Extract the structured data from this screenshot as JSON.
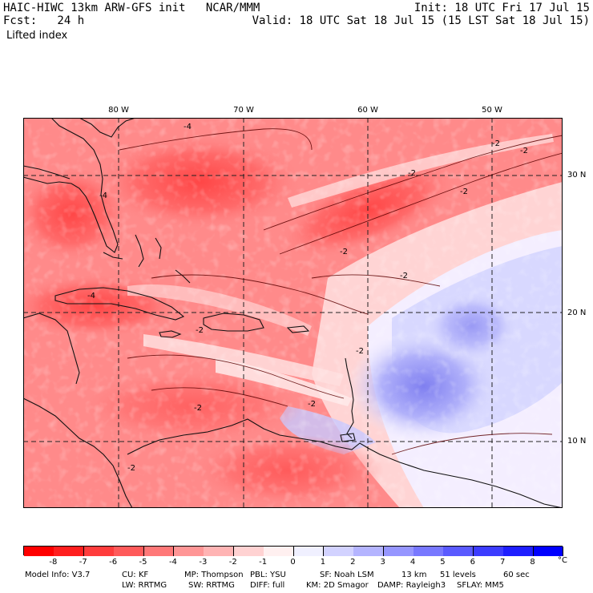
{
  "header": {
    "title_left": "HAIC-HIWC 13km ARW-GFS init   NCAR/MMM",
    "forecast": "Fcst:   24 h",
    "field": "Lifted index",
    "init": "Init: 18 UTC Fri 17 Jul 15",
    "valid": "Valid: 18 UTC Sat 18 Jul 15 (15 LST Sat 18 Jul 15)"
  },
  "map": {
    "lon_labels": [
      {
        "text": "80 W",
        "lon": -80
      },
      {
        "text": "70 W",
        "lon": -70
      },
      {
        "text": "60 W",
        "lon": -60
      },
      {
        "text": "50 W",
        "lon": -50
      }
    ],
    "lat_labels": [
      {
        "text": "30 N",
        "lat": 30
      },
      {
        "text": "20 N",
        "lat": 20
      },
      {
        "text": "10 N",
        "lat": 10
      }
    ],
    "contour_labels": [
      "-4",
      "-2",
      "-2",
      "-2",
      "-2",
      "-2",
      "-2",
      "-2",
      "-2",
      "-4",
      "-4",
      "-2",
      "-2",
      "-2"
    ]
  },
  "colorbar": {
    "unit": "°C",
    "labels": [
      "-8",
      "-7",
      "-6",
      "-5",
      "-4",
      "-3",
      "-2",
      "-1",
      "0",
      "1",
      "2",
      "3",
      "4",
      "5",
      "6",
      "7",
      "8"
    ],
    "colors": [
      "#ff0000",
      "#ff1e1e",
      "#ff3c3c",
      "#ff5a5a",
      "#ff7878",
      "#ff9696",
      "#ffb4b4",
      "#ffd2d2",
      "#fff0f0",
      "#f0f0ff",
      "#d2d2ff",
      "#b4b4ff",
      "#9696ff",
      "#7878ff",
      "#5a5aff",
      "#3c3cff",
      "#1e1eff",
      "#0000ff"
    ]
  },
  "model_info": {
    "line1": [
      "Model Info: V3.7",
      "CU: KF",
      "MP: Thompson",
      "PBL: YSU",
      "SF: Noah LSM",
      "13 km",
      "51 levels",
      "60 sec"
    ],
    "line2": [
      "LW: RRTMG",
      "SW: RRTMG",
      "DIFF: full",
      "KM: 2D Smagor",
      "DAMP: Rayleigh3",
      "SFLAY: MM5"
    ]
  }
}
